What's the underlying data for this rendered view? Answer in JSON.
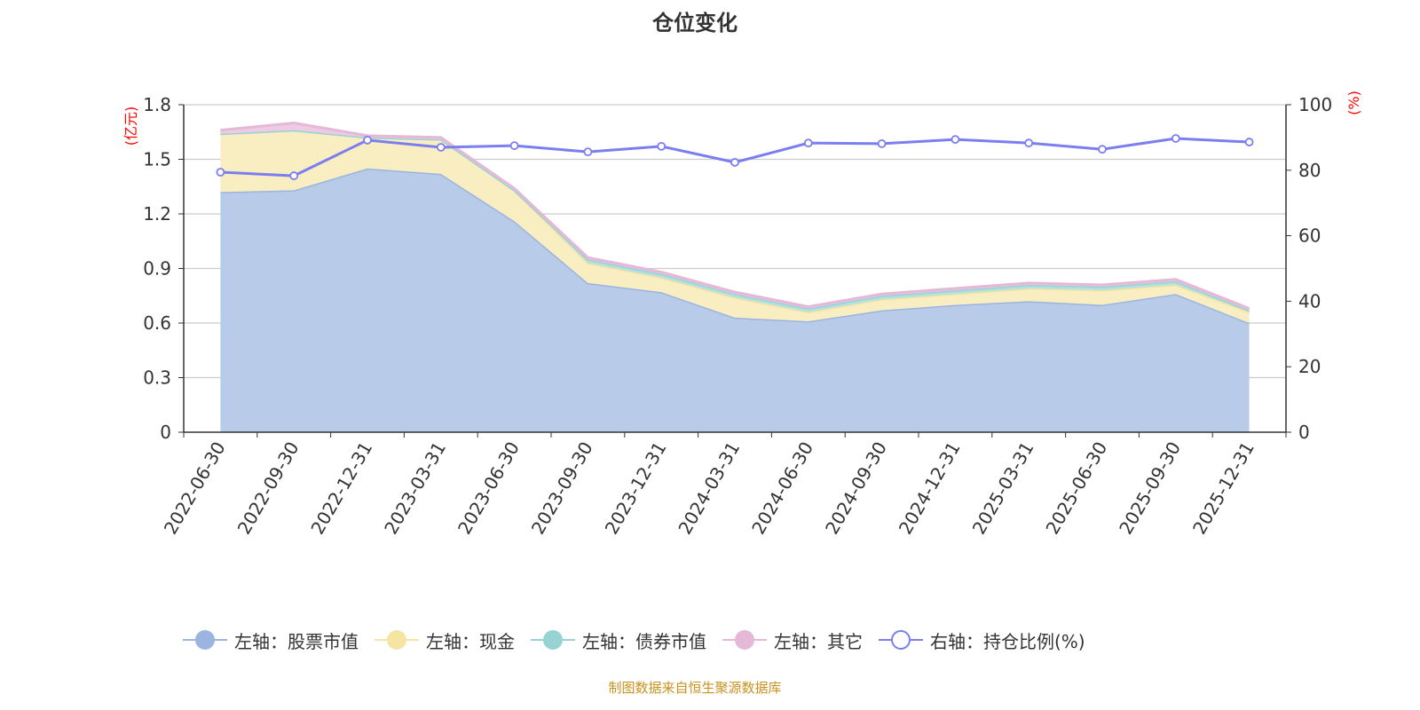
{
  "chart_data": {
    "type": "area",
    "title": "仓位变化",
    "left_axis_unit": "(亿元)",
    "right_axis_unit": "(%)",
    "left_ylim": [
      0,
      1.8
    ],
    "left_ticks": [
      "0",
      "0.3",
      "0.6",
      "0.9",
      "1.2",
      "1.5",
      "1.8"
    ],
    "right_ylim": [
      0,
      100
    ],
    "right_ticks": [
      "0",
      "20",
      "40",
      "60",
      "80",
      "100"
    ],
    "grid": true,
    "stacked": true,
    "legend_position": "bottom",
    "categories": [
      "2022-06-30",
      "2022-09-30",
      "2022-12-31",
      "2023-03-31",
      "2023-06-30",
      "2023-09-30",
      "2023-12-31",
      "2024-03-31",
      "2024-06-30",
      "2024-09-30",
      "2024-12-31",
      "2025-03-31",
      "2025-06-30",
      "2025-09-30",
      "2025-12-31"
    ],
    "series": [
      {
        "name": "左轴：股票市值",
        "axis": "left",
        "kind": "area",
        "color": "#9bb5e0",
        "fill": "#b8cbe8",
        "values": [
          1.32,
          1.33,
          1.45,
          1.42,
          1.16,
          0.82,
          0.77,
          0.63,
          0.61,
          0.67,
          0.7,
          0.72,
          0.7,
          0.76,
          0.6
        ]
      },
      {
        "name": "左轴：现金",
        "axis": "left",
        "kind": "area",
        "color": "#f5e4a2",
        "fill": "#f9edc2",
        "values": [
          0.32,
          0.33,
          0.17,
          0.19,
          0.17,
          0.11,
          0.08,
          0.11,
          0.05,
          0.06,
          0.06,
          0.07,
          0.08,
          0.05,
          0.06
        ]
      },
      {
        "name": "左轴：债券市值",
        "axis": "left",
        "kind": "area",
        "color": "#97d3d3",
        "fill": "#b3e0e0",
        "values": [
          0,
          0,
          0,
          0,
          0,
          0.02,
          0.02,
          0.02,
          0.02,
          0.02,
          0.02,
          0.02,
          0.02,
          0.02,
          0.01
        ]
      },
      {
        "name": "左轴：其它",
        "axis": "left",
        "kind": "area",
        "color": "#e6b8d8",
        "fill": "#edcbe3",
        "values": [
          0.02,
          0.04,
          0.01,
          0.01,
          0.01,
          0.01,
          0.01,
          0.01,
          0.01,
          0.01,
          0.01,
          0.01,
          0.01,
          0.01,
          0.01
        ]
      },
      {
        "name": "右轴：持仓比例(%)",
        "axis": "right",
        "kind": "line",
        "color": "#7b7ef0",
        "values": [
          79.4,
          78.3,
          89.2,
          87.0,
          87.5,
          85.6,
          87.3,
          82.4,
          88.3,
          88.1,
          89.4,
          88.3,
          86.4,
          89.7,
          88.6
        ]
      }
    ]
  },
  "footer": "制图数据来自恒生聚源数据库"
}
